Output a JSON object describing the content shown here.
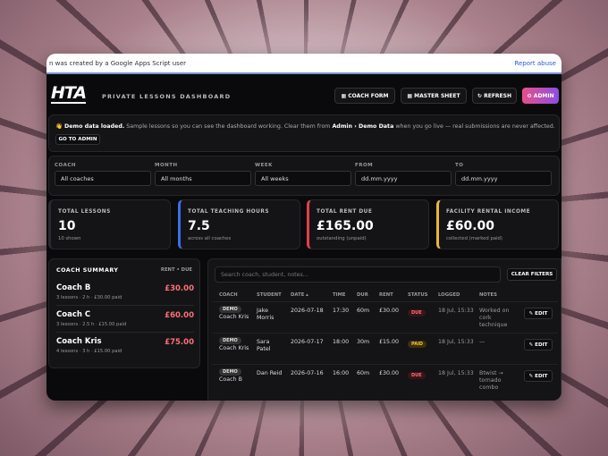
{
  "banner": {
    "text": "n was created by a Google Apps Script user",
    "link": "Report abuse"
  },
  "header": {
    "logo": "HTA",
    "title": "PRIVATE LESSONS DASHBOARD",
    "buttons": [
      "▦ COACH FORM",
      "▦ MASTER SHEET",
      "↻ REFRESH",
      "⚙ ADMIN"
    ]
  },
  "notice": {
    "lead": "👋 Demo data loaded.",
    "text1": " Sample lessons so you can see the dashboard working. Clear them from ",
    "link": "Admin › Demo Data",
    "text2": " when you go live — real submissions are never affected.",
    "button": "GO TO ADMIN"
  },
  "filters": [
    {
      "label": "COACH",
      "value": "All coaches"
    },
    {
      "label": "MONTH",
      "value": "All months"
    },
    {
      "label": "WEEK",
      "value": "All weeks"
    },
    {
      "label": "FROM",
      "value": "dd.mm.yyyy"
    },
    {
      "label": "TO",
      "value": "dd.mm.yyyy"
    }
  ],
  "stats": [
    {
      "label": "TOTAL LESSONS",
      "value": "10",
      "note": "10 shown"
    },
    {
      "label": "TOTAL TEACHING HOURS",
      "value": "7.5",
      "note": "across all coaches"
    },
    {
      "label": "TOTAL RENT DUE",
      "value": "£165.00",
      "note": "outstanding (unpaid)"
    },
    {
      "label": "FACILITY RENTAL INCOME",
      "value": "£60.00",
      "note": "collected (marked paid)"
    }
  ],
  "coach_summary": {
    "title": "COACH SUMMARY",
    "column": "RENT • DUE",
    "coaches": [
      {
        "name": "Coach B",
        "detail": "3 lessons · 2 h · £30.00 paid",
        "due": "£30.00"
      },
      {
        "name": "Coach C",
        "detail": "3 lessons · 2.5 h · £15.00 paid",
        "due": "£60.00"
      },
      {
        "name": "Coach Kris",
        "detail": "4 lessons · 3 h · £15.00 paid",
        "due": "£75.00"
      }
    ]
  },
  "table": {
    "search_placeholder": "Search coach, student, notes...",
    "clear_button": "CLEAR FILTERS",
    "headers": [
      "COACH",
      "STUDENT",
      "DATE ▴",
      "TIME",
      "DUR",
      "RENT",
      "STATUS",
      "LOGGED",
      "NOTES"
    ],
    "rows": [
      {
        "tag": "DEMO",
        "coach": "Coach Kris",
        "student": "Jake Morris",
        "date": "2026-07-18",
        "time": "17:30",
        "dur": "60m",
        "rent": "£30.00",
        "status": "DUE",
        "logged": "18 Jul, 15:33",
        "notes": "Worked on cork technique",
        "action": "✎ EDIT"
      },
      {
        "tag": "DEMO",
        "coach": "Coach Kris",
        "student": "Sara Patel",
        "date": "2026-07-17",
        "time": "18:00",
        "dur": "30m",
        "rent": "£15.00",
        "status": "PAID",
        "logged": "18 Jul, 15:33",
        "notes": "—",
        "action": "✎ EDIT"
      },
      {
        "tag": "DEMO",
        "coach": "Coach B",
        "student": "Dan Reid",
        "date": "2026-07-16",
        "time": "16:00",
        "dur": "60m",
        "rent": "£30.00",
        "status": "DUE",
        "logged": "18 Jul, 15:33",
        "notes": "Btwist → tornado combo",
        "action": "✎ EDIT"
      }
    ]
  }
}
